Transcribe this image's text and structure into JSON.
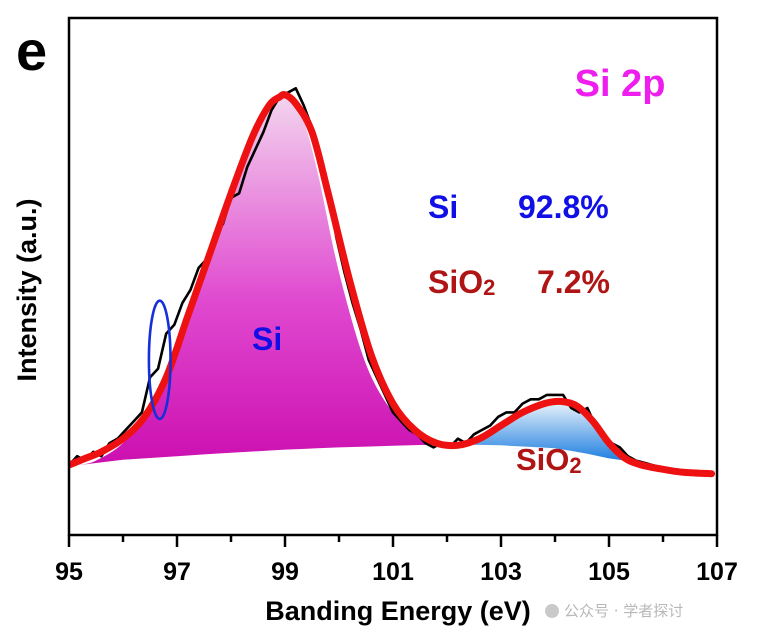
{
  "chart_data": {
    "type": "area",
    "panel_label": "e",
    "title": "Si 2p",
    "xlabel": "Banding Energy (eV)",
    "ylabel": "Intensity (a.u.)",
    "xlim": [
      95,
      107
    ],
    "ylim": [
      0,
      1
    ],
    "xticks": [
      95,
      97,
      99,
      101,
      103,
      105,
      107
    ],
    "xtick_labels": [
      "95",
      "97",
      "99",
      "101",
      "103",
      "105",
      "107"
    ],
    "y_tick_labels_shown": false,
    "components": [
      {
        "name": "Si",
        "percent": "92.8%",
        "label": "Si",
        "pct_color": "#1010e6",
        "color_top": "#f3d4ee",
        "color_bottom": "#cc0fb0",
        "x": [
          95.2,
          95.5,
          96.0,
          96.5,
          97.0,
          97.5,
          98.0,
          98.5,
          98.8,
          99.0,
          99.3,
          99.6,
          100.0,
          100.5,
          101.0,
          101.5,
          102.0
        ],
        "y": [
          0.08,
          0.09,
          0.13,
          0.21,
          0.36,
          0.52,
          0.68,
          0.84,
          0.9,
          0.92,
          0.88,
          0.75,
          0.52,
          0.31,
          0.2,
          0.145,
          0.125
        ]
      },
      {
        "name": "SiO2",
        "percent": "7.2%",
        "label": "SiO",
        "label_sub": "2",
        "pct_color": "#b01515",
        "color_top": "#e6f0fa",
        "color_bottom": "#1e7fe0",
        "x": [
          102.0,
          102.5,
          103.0,
          103.5,
          104.0,
          104.3,
          104.6,
          105.0,
          105.3
        ],
        "y": [
          0.12,
          0.135,
          0.165,
          0.2,
          0.22,
          0.215,
          0.185,
          0.13,
          0.09
        ]
      }
    ],
    "baseline": {
      "x": [
        95.2,
        96,
        97,
        98,
        99,
        100,
        101,
        102,
        103,
        104,
        104.5,
        105,
        105.3
      ],
      "y": [
        0.08,
        0.092,
        0.1,
        0.108,
        0.115,
        0.12,
        0.124,
        0.127,
        0.125,
        0.118,
        0.108,
        0.095,
        0.09
      ]
    },
    "raw_data": {
      "name": "Raw",
      "color": "#000000",
      "x": [
        95.0,
        95.15,
        95.3,
        95.45,
        95.6,
        95.75,
        95.9,
        96.05,
        96.2,
        96.35,
        96.5,
        96.65,
        96.8,
        96.95,
        97.1,
        97.25,
        97.4,
        97.55,
        97.7,
        97.85,
        98.0,
        98.15,
        98.3,
        98.45,
        98.6,
        98.75,
        98.9,
        99.05,
        99.2,
        99.35,
        99.5,
        99.65,
        99.8,
        99.95,
        100.1,
        100.25,
        100.4,
        100.55,
        100.7,
        100.85,
        101.0,
        101.15,
        101.3,
        101.45,
        101.6,
        101.75,
        101.9,
        102.05,
        102.2,
        102.35,
        102.5,
        102.65,
        102.8,
        102.95,
        103.1,
        103.25,
        103.4,
        103.55,
        103.7,
        103.85,
        104.0,
        104.15,
        104.3,
        104.45,
        104.6,
        104.75,
        104.9,
        105.05,
        105.2,
        105.35,
        105.5,
        105.65,
        105.8,
        105.95,
        106.1,
        106.25,
        106.4,
        106.55,
        106.7,
        106.85
      ],
      "y": [
        0.08,
        0.1,
        0.09,
        0.11,
        0.1,
        0.13,
        0.14,
        0.16,
        0.18,
        0.2,
        0.28,
        0.3,
        0.38,
        0.4,
        0.45,
        0.48,
        0.53,
        0.55,
        0.61,
        0.63,
        0.69,
        0.7,
        0.76,
        0.8,
        0.84,
        0.89,
        0.92,
        0.93,
        0.94,
        0.9,
        0.85,
        0.77,
        0.72,
        0.6,
        0.52,
        0.45,
        0.39,
        0.32,
        0.28,
        0.24,
        0.2,
        0.18,
        0.16,
        0.15,
        0.13,
        0.12,
        0.13,
        0.12,
        0.14,
        0.13,
        0.15,
        0.16,
        0.17,
        0.19,
        0.2,
        0.2,
        0.22,
        0.23,
        0.23,
        0.24,
        0.24,
        0.24,
        0.21,
        0.2,
        0.21,
        0.17,
        0.15,
        0.13,
        0.12,
        0.1,
        0.09,
        0.085,
        0.08,
        0.075,
        0.07,
        0.07,
        0.065,
        0.065,
        0.062,
        0.062
      ]
    },
    "fit_envelope": {
      "name": "Fit",
      "color": "#ee1111",
      "x": [
        95.0,
        95.3,
        95.6,
        96.0,
        96.4,
        96.8,
        97.2,
        97.6,
        98.0,
        98.4,
        98.7,
        98.9,
        99.0,
        99.2,
        99.5,
        99.8,
        100.2,
        100.6,
        101.0,
        101.4,
        101.8,
        102.2,
        102.6,
        103.0,
        103.4,
        103.8,
        104.1,
        104.4,
        104.7,
        105.0,
        105.3,
        105.6,
        106.0,
        106.4,
        106.9
      ],
      "y": [
        0.08,
        0.095,
        0.11,
        0.14,
        0.19,
        0.28,
        0.42,
        0.56,
        0.7,
        0.83,
        0.9,
        0.92,
        0.925,
        0.905,
        0.84,
        0.7,
        0.5,
        0.33,
        0.22,
        0.16,
        0.13,
        0.125,
        0.14,
        0.17,
        0.2,
        0.22,
        0.225,
        0.215,
        0.18,
        0.13,
        0.095,
        0.08,
        0.07,
        0.063,
        0.06
      ]
    },
    "annotation_ellipse": {
      "cx": 96.68,
      "cy": 0.32,
      "rx": 0.2,
      "ry": 0.135,
      "color": "#1530d8"
    },
    "grid": false,
    "legend": "none"
  },
  "watermark": {
    "text": "公众号 · 学者探讨"
  }
}
